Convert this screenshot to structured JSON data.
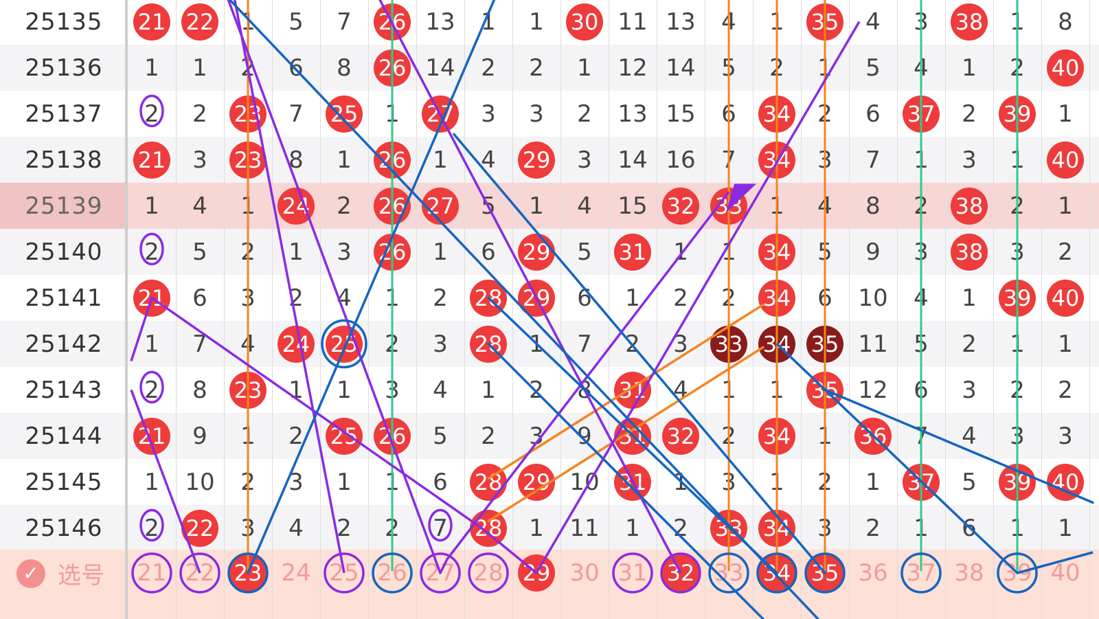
{
  "rows": [
    {
      "issue": "25135",
      "cells": [
        "21",
        "22",
        "1",
        "5",
        "7",
        "26",
        "13",
        "1",
        "1",
        "30",
        "11",
        "13",
        "4",
        "1",
        "35",
        "4",
        "3",
        "38",
        "1",
        "8"
      ],
      "balls": [
        0,
        1,
        5,
        9,
        14,
        17
      ]
    },
    {
      "issue": "25136",
      "cells": [
        "1",
        "1",
        "2",
        "6",
        "8",
        "26",
        "14",
        "2",
        "2",
        "1",
        "12",
        "14",
        "5",
        "2",
        "1",
        "5",
        "4",
        "1",
        "2",
        "40"
      ],
      "balls": [
        5,
        19
      ]
    },
    {
      "issue": "25137",
      "cells": [
        "2",
        "2",
        "23",
        "7",
        "25",
        "1",
        "27",
        "3",
        "3",
        "2",
        "13",
        "15",
        "6",
        "34",
        "2",
        "6",
        "37",
        "2",
        "39",
        "1"
      ],
      "balls": [
        2,
        4,
        6,
        13,
        16,
        18
      ]
    },
    {
      "issue": "25138",
      "cells": [
        "21",
        "3",
        "23",
        "8",
        "1",
        "26",
        "1",
        "4",
        "29",
        "3",
        "14",
        "16",
        "7",
        "34",
        "3",
        "7",
        "1",
        "3",
        "1",
        "40"
      ],
      "balls": [
        0,
        2,
        5,
        8,
        13,
        19
      ]
    },
    {
      "issue": "25139",
      "cells": [
        "1",
        "4",
        "1",
        "24",
        "2",
        "26",
        "27",
        "5",
        "1",
        "4",
        "15",
        "32",
        "33",
        "1",
        "4",
        "8",
        "2",
        "38",
        "2",
        "1"
      ],
      "balls": [
        3,
        5,
        6,
        11,
        12,
        17
      ],
      "highlight": true
    },
    {
      "issue": "25140",
      "cells": [
        "2",
        "5",
        "2",
        "1",
        "3",
        "26",
        "1",
        "6",
        "29",
        "5",
        "31",
        "1",
        "1",
        "34",
        "5",
        "9",
        "3",
        "38",
        "3",
        "2"
      ],
      "balls": [
        5,
        8,
        10,
        13,
        17
      ]
    },
    {
      "issue": "25141",
      "cells": [
        "21",
        "6",
        "3",
        "2",
        "4",
        "1",
        "2",
        "28",
        "29",
        "6",
        "1",
        "2",
        "2",
        "34",
        "6",
        "10",
        "4",
        "1",
        "39",
        "40"
      ],
      "balls": [
        0,
        7,
        8,
        13,
        18,
        19
      ]
    },
    {
      "issue": "25142",
      "cells": [
        "1",
        "7",
        "4",
        "24",
        "25",
        "2",
        "3",
        "28",
        "1",
        "7",
        "2",
        "3",
        "33",
        "34",
        "35",
        "11",
        "5",
        "2",
        "1",
        "1"
      ],
      "balls": [
        3,
        4,
        7
      ],
      "dark": [
        12,
        13,
        14
      ]
    },
    {
      "issue": "25143",
      "cells": [
        "2",
        "8",
        "23",
        "1",
        "1",
        "3",
        "4",
        "1",
        "2",
        "8",
        "31",
        "4",
        "1",
        "1",
        "35",
        "12",
        "6",
        "3",
        "2",
        "2"
      ],
      "balls": [
        2,
        10,
        14
      ]
    },
    {
      "issue": "25144",
      "cells": [
        "21",
        "9",
        "1",
        "2",
        "25",
        "26",
        "5",
        "2",
        "3",
        "9",
        "31",
        "32",
        "2",
        "34",
        "1",
        "36",
        "7",
        "4",
        "3",
        "3"
      ],
      "balls": [
        0,
        4,
        5,
        10,
        11,
        13,
        15
      ]
    },
    {
      "issue": "25145",
      "cells": [
        "1",
        "10",
        "2",
        "3",
        "1",
        "1",
        "6",
        "28",
        "29",
        "10",
        "31",
        "1",
        "3",
        "1",
        "2",
        "1",
        "37",
        "5",
        "39",
        "40"
      ],
      "balls": [
        7,
        8,
        10,
        16,
        18,
        19
      ]
    },
    {
      "issue": "25146",
      "cells": [
        "2",
        "22",
        "3",
        "4",
        "2",
        "2",
        "7",
        "28",
        "1",
        "11",
        "1",
        "2",
        "33",
        "34",
        "3",
        "2",
        "1",
        "6",
        "1",
        "1"
      ],
      "balls": [
        1,
        7,
        12,
        13
      ]
    }
  ],
  "selection": {
    "label": "选号",
    "check_icon": "check-circle-icon",
    "numbers": [
      "21",
      "22",
      "23",
      "24",
      "25",
      "26",
      "27",
      "28",
      "29",
      "30",
      "31",
      "32",
      "33",
      "34",
      "35",
      "36",
      "37",
      "38",
      "39",
      "40"
    ],
    "balls": [
      2,
      8,
      11,
      13,
      14
    ]
  },
  "colors": {
    "ball": "#ee3b3b",
    "ball_dark": "#8a1c1c",
    "purple": "#8a2be2",
    "blue": "#1565c0",
    "orange": "#f5841f",
    "green": "#2ecc8a"
  }
}
